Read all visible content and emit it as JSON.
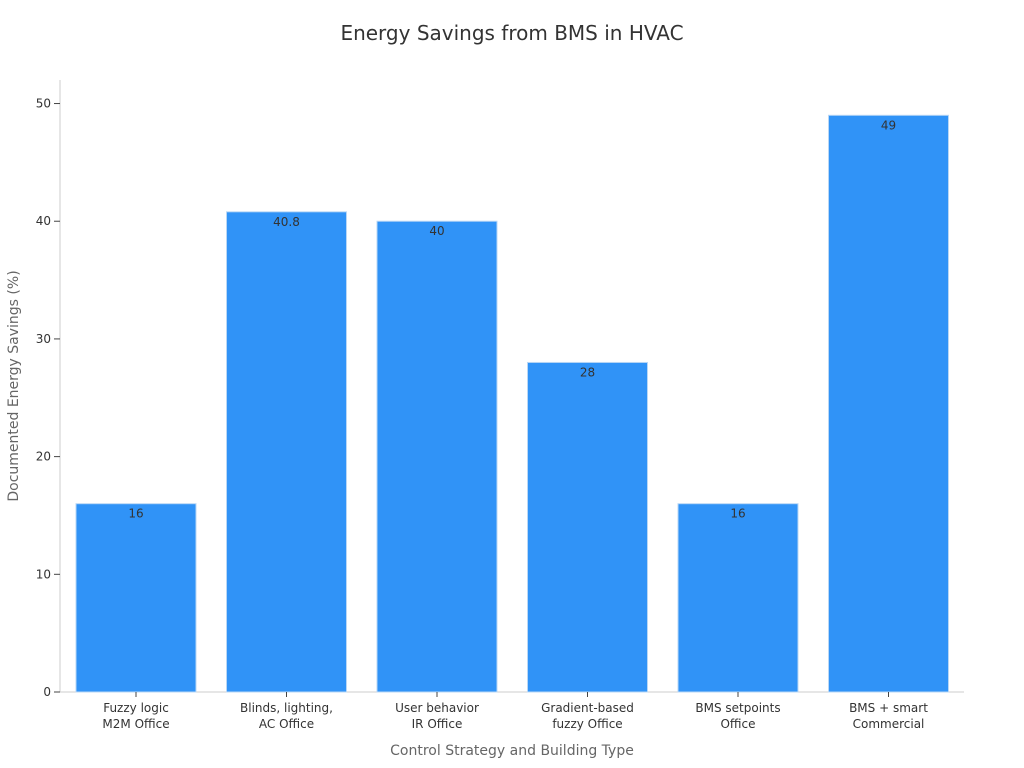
{
  "chart_data": {
    "type": "bar",
    "title": "Energy Savings from BMS in HVAC",
    "xlabel": "Control Strategy and Building Type",
    "ylabel": "Documented Energy Savings (%)",
    "categories": [
      [
        "Fuzzy logic",
        "M2M Office"
      ],
      [
        "Blinds, lighting,",
        "AC Office"
      ],
      [
        "User behavior",
        "IR Office"
      ],
      [
        "Gradient-based",
        "fuzzy Office"
      ],
      [
        "BMS setpoints",
        "Office"
      ],
      [
        "BMS + smart",
        "Commercial"
      ]
    ],
    "values": [
      16,
      40.8,
      40,
      28,
      16,
      49
    ],
    "data_labels": [
      "16",
      "40.8",
      "40",
      "28",
      "16",
      "49"
    ],
    "ylim": [
      0,
      52
    ],
    "yticks": [
      0,
      10,
      20,
      30,
      40,
      50
    ],
    "grid": false,
    "bar_color": "#3093f7"
  }
}
